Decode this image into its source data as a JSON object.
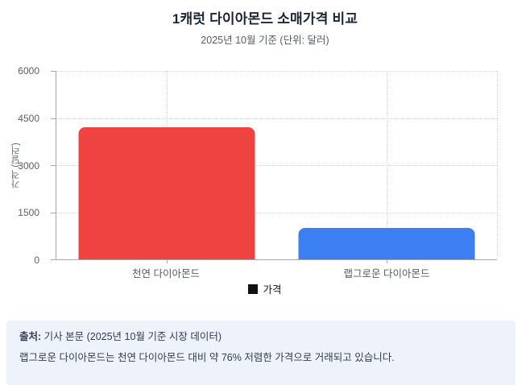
{
  "chart_data": {
    "type": "bar",
    "title": "1캐럿 다이아몬드 소매가격 비교",
    "subtitle": "2025년 10월 기준 (단위: 달러)",
    "categories": [
      "천연 다이아몬드",
      "랩그로운 다이아몬드"
    ],
    "series": [
      {
        "name": "가격",
        "values": [
          4200,
          1000
        ]
      }
    ],
    "xlabel": "",
    "ylabel": "가격 (달러)",
    "ylim": [
      0,
      6000
    ],
    "yticks": [
      0,
      1500,
      3000,
      4500,
      6000
    ],
    "bar_colors": [
      "#ee4340",
      "#3b7ff2"
    ],
    "grid": "dotted horizontal and vertical gridlines, dotted right border",
    "legend": {
      "label": "가격",
      "position": "bottom",
      "marker_color": "#111111"
    }
  },
  "footer": {
    "source_label": "출처:",
    "source_text": " 기사 본문 (2025년 10월 기준 시장 데이터)",
    "note": "랩그로운 다이아몬드는 천연 다이아몬드 대비 약 76% 저렴한 가격으로 거래되고 있습니다."
  }
}
